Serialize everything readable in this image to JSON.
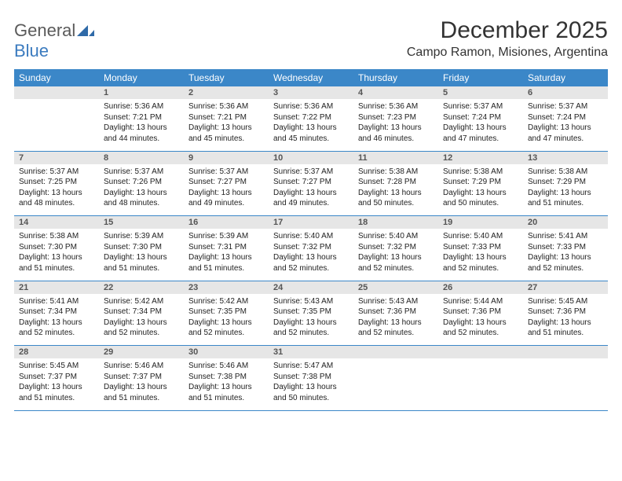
{
  "logo": {
    "text1": "General",
    "text2": "Blue"
  },
  "title": "December 2025",
  "location": "Campo Ramon, Misiones, Argentina",
  "colors": {
    "header_bg": "#3b87c8",
    "header_fg": "#ffffff",
    "daynum_bg": "#e6e6e6",
    "daynum_fg": "#555555",
    "rule": "#3b87c8",
    "logo_gray": "#5a5a5a",
    "logo_blue": "#3b7bbf"
  },
  "weekdays": [
    "Sunday",
    "Monday",
    "Tuesday",
    "Wednesday",
    "Thursday",
    "Friday",
    "Saturday"
  ],
  "weeks": [
    {
      "nums": [
        "",
        "1",
        "2",
        "3",
        "4",
        "5",
        "6"
      ],
      "cells": [
        null,
        {
          "sunrise": "Sunrise: 5:36 AM",
          "sunset": "Sunset: 7:21 PM",
          "day1": "Daylight: 13 hours",
          "day2": "and 44 minutes."
        },
        {
          "sunrise": "Sunrise: 5:36 AM",
          "sunset": "Sunset: 7:21 PM",
          "day1": "Daylight: 13 hours",
          "day2": "and 45 minutes."
        },
        {
          "sunrise": "Sunrise: 5:36 AM",
          "sunset": "Sunset: 7:22 PM",
          "day1": "Daylight: 13 hours",
          "day2": "and 45 minutes."
        },
        {
          "sunrise": "Sunrise: 5:36 AM",
          "sunset": "Sunset: 7:23 PM",
          "day1": "Daylight: 13 hours",
          "day2": "and 46 minutes."
        },
        {
          "sunrise": "Sunrise: 5:37 AM",
          "sunset": "Sunset: 7:24 PM",
          "day1": "Daylight: 13 hours",
          "day2": "and 47 minutes."
        },
        {
          "sunrise": "Sunrise: 5:37 AM",
          "sunset": "Sunset: 7:24 PM",
          "day1": "Daylight: 13 hours",
          "day2": "and 47 minutes."
        }
      ]
    },
    {
      "nums": [
        "7",
        "8",
        "9",
        "10",
        "11",
        "12",
        "13"
      ],
      "cells": [
        {
          "sunrise": "Sunrise: 5:37 AM",
          "sunset": "Sunset: 7:25 PM",
          "day1": "Daylight: 13 hours",
          "day2": "and 48 minutes."
        },
        {
          "sunrise": "Sunrise: 5:37 AM",
          "sunset": "Sunset: 7:26 PM",
          "day1": "Daylight: 13 hours",
          "day2": "and 48 minutes."
        },
        {
          "sunrise": "Sunrise: 5:37 AM",
          "sunset": "Sunset: 7:27 PM",
          "day1": "Daylight: 13 hours",
          "day2": "and 49 minutes."
        },
        {
          "sunrise": "Sunrise: 5:37 AM",
          "sunset": "Sunset: 7:27 PM",
          "day1": "Daylight: 13 hours",
          "day2": "and 49 minutes."
        },
        {
          "sunrise": "Sunrise: 5:38 AM",
          "sunset": "Sunset: 7:28 PM",
          "day1": "Daylight: 13 hours",
          "day2": "and 50 minutes."
        },
        {
          "sunrise": "Sunrise: 5:38 AM",
          "sunset": "Sunset: 7:29 PM",
          "day1": "Daylight: 13 hours",
          "day2": "and 50 minutes."
        },
        {
          "sunrise": "Sunrise: 5:38 AM",
          "sunset": "Sunset: 7:29 PM",
          "day1": "Daylight: 13 hours",
          "day2": "and 51 minutes."
        }
      ]
    },
    {
      "nums": [
        "14",
        "15",
        "16",
        "17",
        "18",
        "19",
        "20"
      ],
      "cells": [
        {
          "sunrise": "Sunrise: 5:38 AM",
          "sunset": "Sunset: 7:30 PM",
          "day1": "Daylight: 13 hours",
          "day2": "and 51 minutes."
        },
        {
          "sunrise": "Sunrise: 5:39 AM",
          "sunset": "Sunset: 7:30 PM",
          "day1": "Daylight: 13 hours",
          "day2": "and 51 minutes."
        },
        {
          "sunrise": "Sunrise: 5:39 AM",
          "sunset": "Sunset: 7:31 PM",
          "day1": "Daylight: 13 hours",
          "day2": "and 51 minutes."
        },
        {
          "sunrise": "Sunrise: 5:40 AM",
          "sunset": "Sunset: 7:32 PM",
          "day1": "Daylight: 13 hours",
          "day2": "and 52 minutes."
        },
        {
          "sunrise": "Sunrise: 5:40 AM",
          "sunset": "Sunset: 7:32 PM",
          "day1": "Daylight: 13 hours",
          "day2": "and 52 minutes."
        },
        {
          "sunrise": "Sunrise: 5:40 AM",
          "sunset": "Sunset: 7:33 PM",
          "day1": "Daylight: 13 hours",
          "day2": "and 52 minutes."
        },
        {
          "sunrise": "Sunrise: 5:41 AM",
          "sunset": "Sunset: 7:33 PM",
          "day1": "Daylight: 13 hours",
          "day2": "and 52 minutes."
        }
      ]
    },
    {
      "nums": [
        "21",
        "22",
        "23",
        "24",
        "25",
        "26",
        "27"
      ],
      "cells": [
        {
          "sunrise": "Sunrise: 5:41 AM",
          "sunset": "Sunset: 7:34 PM",
          "day1": "Daylight: 13 hours",
          "day2": "and 52 minutes."
        },
        {
          "sunrise": "Sunrise: 5:42 AM",
          "sunset": "Sunset: 7:34 PM",
          "day1": "Daylight: 13 hours",
          "day2": "and 52 minutes."
        },
        {
          "sunrise": "Sunrise: 5:42 AM",
          "sunset": "Sunset: 7:35 PM",
          "day1": "Daylight: 13 hours",
          "day2": "and 52 minutes."
        },
        {
          "sunrise": "Sunrise: 5:43 AM",
          "sunset": "Sunset: 7:35 PM",
          "day1": "Daylight: 13 hours",
          "day2": "and 52 minutes."
        },
        {
          "sunrise": "Sunrise: 5:43 AM",
          "sunset": "Sunset: 7:36 PM",
          "day1": "Daylight: 13 hours",
          "day2": "and 52 minutes."
        },
        {
          "sunrise": "Sunrise: 5:44 AM",
          "sunset": "Sunset: 7:36 PM",
          "day1": "Daylight: 13 hours",
          "day2": "and 52 minutes."
        },
        {
          "sunrise": "Sunrise: 5:45 AM",
          "sunset": "Sunset: 7:36 PM",
          "day1": "Daylight: 13 hours",
          "day2": "and 51 minutes."
        }
      ]
    },
    {
      "nums": [
        "28",
        "29",
        "30",
        "31",
        "",
        "",
        ""
      ],
      "cells": [
        {
          "sunrise": "Sunrise: 5:45 AM",
          "sunset": "Sunset: 7:37 PM",
          "day1": "Daylight: 13 hours",
          "day2": "and 51 minutes."
        },
        {
          "sunrise": "Sunrise: 5:46 AM",
          "sunset": "Sunset: 7:37 PM",
          "day1": "Daylight: 13 hours",
          "day2": "and 51 minutes."
        },
        {
          "sunrise": "Sunrise: 5:46 AM",
          "sunset": "Sunset: 7:38 PM",
          "day1": "Daylight: 13 hours",
          "day2": "and 51 minutes."
        },
        {
          "sunrise": "Sunrise: 5:47 AM",
          "sunset": "Sunset: 7:38 PM",
          "day1": "Daylight: 13 hours",
          "day2": "and 50 minutes."
        },
        null,
        null,
        null
      ]
    }
  ]
}
